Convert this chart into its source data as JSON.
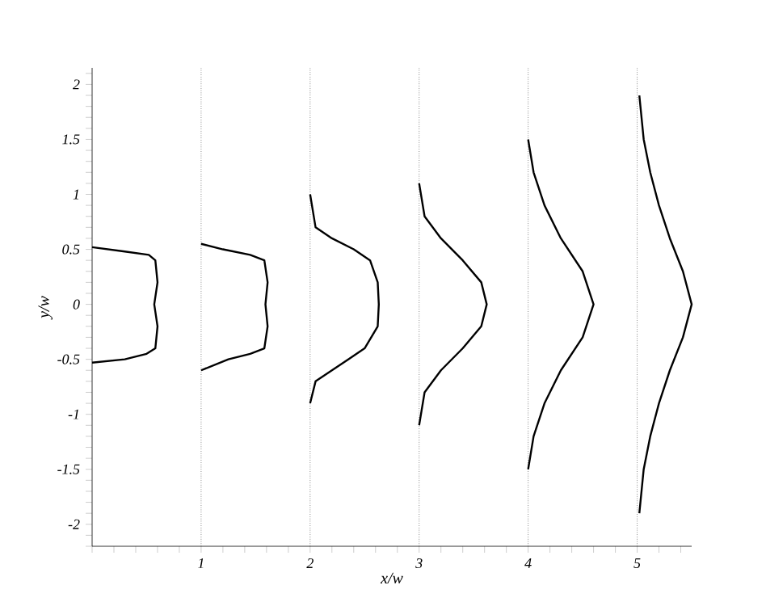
{
  "chart_data": {
    "type": "line",
    "xlabel": "x/w",
    "ylabel": "y/w",
    "xlim": [
      0,
      5.5
    ],
    "ylim": [
      -2.2,
      2.15
    ],
    "xticks": [
      {
        "value": 0,
        "label": null
      },
      {
        "value": 0.2,
        "label": null
      },
      {
        "value": 0.4,
        "label": null
      },
      {
        "value": 0.6,
        "label": null
      },
      {
        "value": 0.8,
        "label": null
      },
      1,
      {
        "value": 1.2,
        "label": null
      },
      {
        "value": 1.4,
        "label": null
      },
      {
        "value": 1.6,
        "label": null
      },
      {
        "value": 1.8,
        "label": null
      },
      2,
      {
        "value": 2.2,
        "label": null
      },
      {
        "value": 2.4,
        "label": null
      },
      {
        "value": 2.6,
        "label": null
      },
      {
        "value": 2.8,
        "label": null
      },
      3,
      {
        "value": 3.2,
        "label": null
      },
      {
        "value": 3.4,
        "label": null
      },
      {
        "value": 3.6,
        "label": null
      },
      {
        "value": 3.8,
        "label": null
      },
      4,
      {
        "value": 4.2,
        "label": null
      },
      {
        "value": 4.4,
        "label": null
      },
      {
        "value": 4.6,
        "label": null
      },
      {
        "value": 4.8,
        "label": null
      },
      5,
      {
        "value": 5.2,
        "label": null
      },
      {
        "value": 5.4,
        "label": null
      }
    ],
    "yticks": [
      {
        "value": -2.2,
        "label": null
      },
      {
        "value": -2.1,
        "label": null
      },
      -2,
      {
        "value": -1.9,
        "label": null
      },
      {
        "value": -1.8,
        "label": null
      },
      {
        "value": -1.7,
        "label": null
      },
      {
        "value": -1.6,
        "label": null
      },
      -1.5,
      {
        "value": -1.4,
        "label": null
      },
      {
        "value": -1.3,
        "label": null
      },
      {
        "value": -1.2,
        "label": null
      },
      {
        "value": -1.1,
        "label": null
      },
      -1,
      {
        "value": -0.9,
        "label": null
      },
      {
        "value": -0.8,
        "label": null
      },
      {
        "value": -0.7,
        "label": null
      },
      {
        "value": -0.6,
        "label": null
      },
      -0.5,
      {
        "value": -0.4,
        "label": null
      },
      {
        "value": -0.3,
        "label": null
      },
      {
        "value": -0.2,
        "label": null
      },
      {
        "value": -0.1,
        "label": null
      },
      0,
      {
        "value": 0.1,
        "label": null
      },
      {
        "value": 0.2,
        "label": null
      },
      {
        "value": 0.3,
        "label": null
      },
      {
        "value": 0.4,
        "label": null
      },
      0.5,
      {
        "value": 0.6,
        "label": null
      },
      {
        "value": 0.7,
        "label": null
      },
      {
        "value": 0.8,
        "label": null
      },
      {
        "value": 0.9,
        "label": null
      },
      1,
      {
        "value": 1.1,
        "label": null
      },
      {
        "value": 1.2,
        "label": null
      },
      {
        "value": 1.3,
        "label": null
      },
      {
        "value": 1.4,
        "label": null
      },
      1.5,
      {
        "value": 1.6,
        "label": null
      },
      {
        "value": 1.7,
        "label": null
      },
      {
        "value": 1.8,
        "label": null
      },
      {
        "value": 1.9,
        "label": null
      },
      2,
      {
        "value": 2.1,
        "label": null
      }
    ],
    "line_style": "solid",
    "ref_lines": [
      {
        "axis": "x",
        "value": 1,
        "line_style": "dotted"
      },
      {
        "axis": "x",
        "value": 2,
        "line_style": "dotted"
      },
      {
        "axis": "x",
        "value": 3,
        "line_style": "dotted"
      },
      {
        "axis": "x",
        "value": 4,
        "line_style": "dotted"
      },
      {
        "axis": "x",
        "value": 5,
        "line_style": "dotted"
      }
    ],
    "series": [
      {
        "color": "#000000",
        "x": [
          0,
          0.3,
          0.52,
          0.58,
          0.6,
          0.57,
          0.6,
          0.58,
          0.5,
          0.3,
          0
        ],
        "values": [
          0.52,
          0.48,
          0.45,
          0.4,
          0.2,
          0,
          -0.2,
          -0.4,
          -0.45,
          -0.5,
          -0.53
        ]
      },
      {
        "color": "#000000",
        "x": [
          1,
          1.2,
          1.45,
          1.58,
          1.61,
          1.59,
          1.61,
          1.58,
          1.45,
          1.25,
          1
        ],
        "values": [
          0.55,
          0.5,
          0.45,
          0.4,
          0.2,
          0,
          -0.2,
          -0.4,
          -0.45,
          -0.5,
          -0.6
        ]
      },
      {
        "color": "#000000",
        "x": [
          2,
          2.05,
          2.2,
          2.4,
          2.55,
          2.62,
          2.63,
          2.62,
          2.5,
          2.35,
          2.2,
          2.05,
          2
        ],
        "values": [
          1.0,
          0.7,
          0.6,
          0.5,
          0.4,
          0.2,
          0,
          -0.2,
          -0.4,
          -0.5,
          -0.6,
          -0.7,
          -0.9
        ]
      },
      {
        "color": "#000000",
        "x": [
          3,
          3.05,
          3.2,
          3.4,
          3.57,
          3.62,
          3.57,
          3.4,
          3.2,
          3.05,
          3
        ],
        "values": [
          1.1,
          0.8,
          0.6,
          0.4,
          0.2,
          0,
          -0.2,
          -0.4,
          -0.6,
          -0.8,
          -1.1
        ]
      },
      {
        "color": "#000000",
        "x": [
          4,
          4.05,
          4.15,
          4.3,
          4.5,
          4.6,
          4.5,
          4.3,
          4.15,
          4.05,
          4
        ],
        "values": [
          1.5,
          1.2,
          0.9,
          0.6,
          0.3,
          0,
          -0.3,
          -0.6,
          -0.9,
          -1.2,
          -1.5
        ]
      },
      {
        "color": "#000000",
        "x": [
          5.02,
          5.06,
          5.12,
          5.2,
          5.3,
          5.42,
          5.5,
          5.42,
          5.3,
          5.2,
          5.12,
          5.06,
          5.02
        ],
        "values": [
          1.9,
          1.5,
          1.2,
          0.9,
          0.6,
          0.3,
          0,
          -0.3,
          -0.6,
          -0.9,
          -1.2,
          -1.5,
          -1.9
        ]
      }
    ]
  }
}
